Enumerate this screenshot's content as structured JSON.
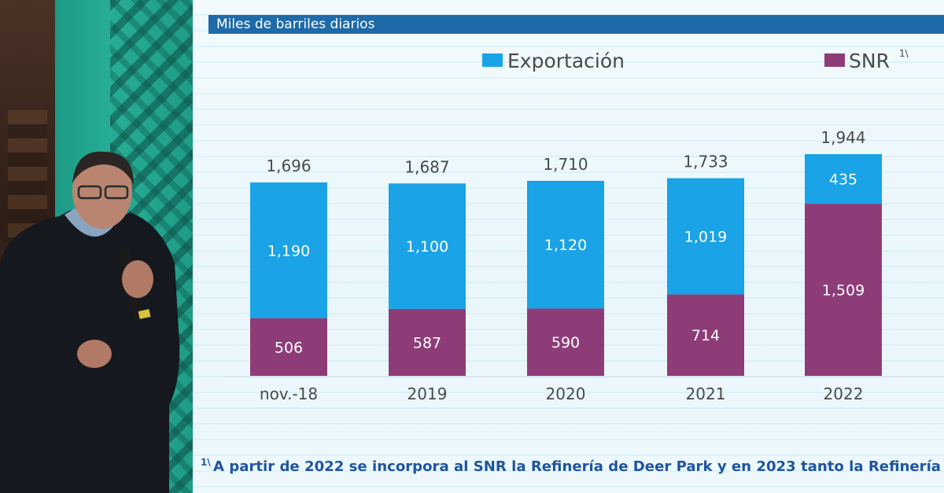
{
  "chart_data": {
    "type": "bar",
    "stacked": true,
    "title": "Miles de barriles diarios",
    "categories": [
      "nov.-18",
      "2019",
      "2020",
      "2021",
      "2022"
    ],
    "series": [
      {
        "name": "SNR",
        "sup": "1\\",
        "color": "#8e3c78",
        "values": [
          506,
          587,
          590,
          714,
          1509
        ]
      },
      {
        "name": "Exportación",
        "color": "#1aa3e6",
        "values": [
          1190,
          1100,
          1120,
          1019,
          435
        ]
      }
    ],
    "totals": [
      "1,696",
      "1,687",
      "1,710",
      "1,733",
      "1,944"
    ],
    "segment_labels": [
      [
        "506",
        "587",
        "590",
        "714",
        "1,509"
      ],
      [
        "1,190",
        "1,100",
        "1,120",
        "1,019",
        "435"
      ]
    ],
    "legend_position": "top",
    "footnote_marker": "1\\",
    "footnote": "A partir de 2022 se incorpora al SNR la Refinería de Deer Park y en 2023 tanto la Refinería"
  },
  "colors": {
    "header_bar": "#1f6aa8",
    "footnote_text": "#1f55a0",
    "banner_green": "#27ad95"
  }
}
